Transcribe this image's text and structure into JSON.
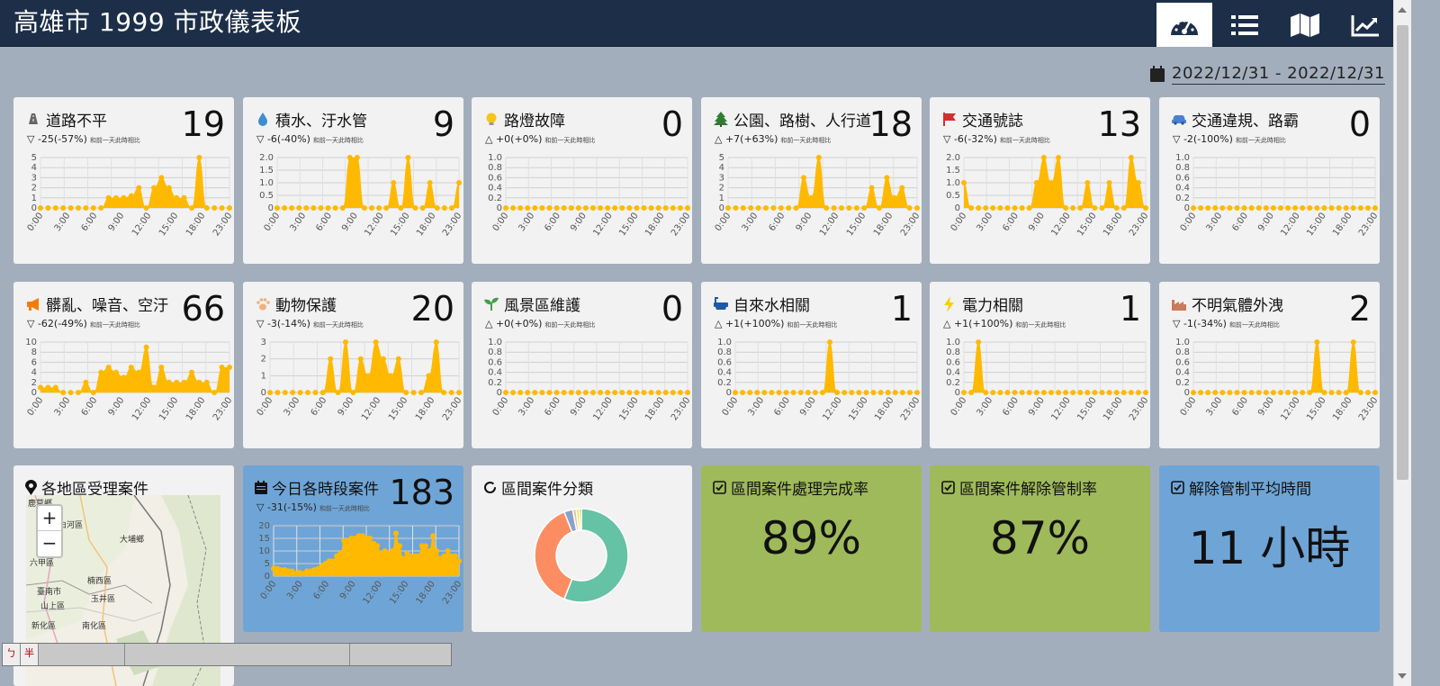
{
  "app": {
    "title": "高雄市 1999 市政儀表板"
  },
  "nav": [
    {
      "name": "dashboard-tab",
      "icon": "speedometer-icon",
      "active": true
    },
    {
      "name": "list-tab",
      "icon": "list-icon",
      "active": false
    },
    {
      "name": "map-tab",
      "icon": "map-icon",
      "active": false
    },
    {
      "name": "trend-tab",
      "icon": "chart-line-icon",
      "active": false
    }
  ],
  "date_range": "2022/12/31 - 2022/12/31",
  "compare_note": "和前一天此時相比",
  "categories": [
    {
      "title": "道路不平",
      "icon": "road-icon",
      "count": "19",
      "delta": "▽ -25(-57%)",
      "ymax": 5,
      "yticks": [
        "5",
        "4",
        "3",
        "2",
        "1",
        "0"
      ],
      "values": [
        0,
        0,
        0,
        0,
        0,
        0,
        0,
        0,
        0,
        1,
        1,
        1,
        1.2,
        2,
        0,
        2,
        3,
        2,
        1,
        1,
        0,
        5,
        0,
        0,
        0,
        0
      ]
    },
    {
      "title": "積水、汙水管",
      "icon": "water-drop-icon",
      "count": "9",
      "delta": "▽ -6(-40%)",
      "ymax": 2,
      "yticks": [
        "2.0",
        "1.5",
        "1.0",
        "0.5",
        "0"
      ],
      "values": [
        0,
        0,
        0,
        0,
        0,
        0,
        0,
        0,
        0,
        0,
        2,
        2,
        0,
        0,
        0,
        0,
        1,
        0,
        2,
        0,
        0,
        1,
        0,
        0,
        0,
        1
      ]
    },
    {
      "title": "路燈故障",
      "icon": "lightbulb-icon",
      "count": "0",
      "delta": "△ +0(+0%)",
      "ymax": 1,
      "yticks": [
        "1.0",
        "0.8",
        "0.6",
        "0.4",
        "0.2",
        "0"
      ],
      "values": [
        0,
        0,
        0,
        0,
        0,
        0,
        0,
        0,
        0,
        0,
        0,
        0,
        0,
        0,
        0,
        0,
        0,
        0,
        0,
        0,
        0,
        0,
        0,
        0,
        0,
        0
      ]
    },
    {
      "title": "公園、路樹、人行道",
      "icon": "tree-icon",
      "count": "18",
      "delta": "△ +7(+63%)",
      "ymax": 5,
      "yticks": [
        "5",
        "4",
        "3",
        "2",
        "1",
        "0"
      ],
      "values": [
        0,
        0,
        0,
        0,
        0,
        0,
        0,
        0,
        0,
        0,
        3,
        1,
        5,
        0,
        0,
        0,
        0,
        0,
        0,
        2,
        0,
        3,
        1,
        2,
        0,
        0
      ]
    },
    {
      "title": "交通號誌",
      "icon": "flag-icon",
      "count": "13",
      "delta": "▽ -6(-32%)",
      "ymax": 2,
      "yticks": [
        "2.0",
        "1.5",
        "1.0",
        "0.5",
        "0"
      ],
      "values": [
        1,
        0,
        0,
        0,
        0,
        0,
        0,
        0,
        0,
        0,
        1,
        2,
        1,
        2,
        0,
        0,
        0,
        1,
        0,
        0,
        1,
        0,
        0,
        2,
        1,
        0
      ]
    },
    {
      "title": "交通違規、路霸",
      "icon": "car-icon",
      "count": "0",
      "delta": "▽ -2(-100%)",
      "ymax": 1,
      "yticks": [
        "1.0",
        "0.8",
        "0.6",
        "0.4",
        "0.2",
        "0"
      ],
      "values": [
        0,
        0,
        0,
        0,
        0,
        0,
        0,
        0,
        0,
        0,
        0,
        0,
        0,
        0,
        0,
        0,
        0,
        0,
        0,
        0,
        0,
        0,
        0,
        0,
        0,
        0
      ]
    },
    {
      "title": "髒亂、噪音、空汙",
      "icon": "megaphone-icon",
      "count": "66",
      "delta": "▽ -62(-49%)",
      "ymax": 10,
      "yticks": [
        "10",
        "8",
        "6",
        "4",
        "2",
        "0"
      ],
      "values": [
        1,
        1,
        1,
        0,
        0,
        0,
        2,
        0,
        4,
        5,
        4,
        3,
        5,
        4,
        9,
        1,
        5,
        2,
        2,
        2,
        4,
        2,
        2,
        0,
        5,
        5
      ]
    },
    {
      "title": "動物保護",
      "icon": "paw-icon",
      "count": "20",
      "delta": "▽ -3(-14%)",
      "ymax": 3,
      "yticks": [
        "3",
        "2",
        "1",
        "0"
      ],
      "values": [
        0,
        0,
        0,
        0,
        0,
        0,
        0,
        0,
        2,
        0,
        3,
        0,
        2,
        1,
        3,
        2,
        1,
        2,
        0,
        0,
        0,
        1,
        3,
        0,
        0,
        0
      ]
    },
    {
      "title": "風景區維護",
      "icon": "sprout-icon",
      "count": "0",
      "delta": "△ +0(+0%)",
      "ymax": 1,
      "yticks": [
        "1.0",
        "0.8",
        "0.6",
        "0.4",
        "0.2",
        "0"
      ],
      "values": [
        0,
        0,
        0,
        0,
        0,
        0,
        0,
        0,
        0,
        0,
        0,
        0,
        0,
        0,
        0,
        0,
        0,
        0,
        0,
        0,
        0,
        0,
        0,
        0,
        0,
        0
      ]
    },
    {
      "title": "自來水相關",
      "icon": "bathtub-icon",
      "count": "1",
      "delta": "△ +1(+100%)",
      "ymax": 1,
      "yticks": [
        "1.0",
        "0.8",
        "0.6",
        "0.4",
        "0.2",
        "0"
      ],
      "values": [
        0,
        0,
        0,
        0,
        0,
        0,
        0,
        0,
        0,
        0,
        0,
        0,
        0,
        1,
        0,
        0,
        0,
        0,
        0,
        0,
        0,
        0,
        0,
        0,
        0,
        0
      ]
    },
    {
      "title": "電力相關",
      "icon": "bolt-icon",
      "count": "1",
      "delta": "△ +1(+100%)",
      "ymax": 1,
      "yticks": [
        "1.0",
        "0.8",
        "0.6",
        "0.4",
        "0.2",
        "0"
      ],
      "values": [
        0,
        0,
        1,
        0,
        0,
        0,
        0,
        0,
        0,
        0,
        0,
        0,
        0,
        0,
        0,
        0,
        0,
        0,
        0,
        0,
        0,
        0,
        0,
        0,
        0,
        0
      ]
    },
    {
      "title": "不明氣體外洩",
      "icon": "factory-icon",
      "count": "2",
      "delta": "▽ -1(-34%)",
      "ymax": 1,
      "yticks": [
        "1.0",
        "0.8",
        "0.6",
        "0.4",
        "0.2",
        "0"
      ],
      "values": [
        0,
        0,
        0,
        0,
        0,
        0,
        0,
        0,
        0,
        0,
        0,
        0,
        0,
        0,
        0,
        0,
        0,
        1,
        0,
        0,
        0,
        0,
        1,
        0,
        0,
        0
      ]
    }
  ],
  "xticks": [
    "0:00",
    "3:00",
    "6:00",
    "9:00",
    "12:00",
    "15:00",
    "18:00",
    "23:00"
  ],
  "map": {
    "title": "各地區受理案件",
    "zoom_in": "+",
    "zoom_out": "−",
    "labels": [
      "鹿草鄉",
      "白河區",
      "大埔鄉",
      "六甲區",
      "楠西區",
      "臺南市",
      "玉井區",
      "山上區",
      "新化區",
      "南化區"
    ]
  },
  "hourly": {
    "title": "今日各時段案件",
    "count": "183",
    "delta": "▽ -31(-15%)",
    "ymax": 20,
    "yticks": [
      "20",
      "15",
      "10",
      "5",
      "0"
    ],
    "values": [
      3,
      3,
      2.5,
      2.5,
      2,
      2,
      1,
      1.5,
      1,
      2,
      2,
      2.5,
      3,
      4,
      5,
      6,
      6,
      8,
      9,
      14,
      14,
      15,
      15,
      16,
      16,
      15,
      15,
      13,
      12,
      9,
      10,
      9,
      10,
      17,
      12,
      7,
      9,
      8,
      8,
      8,
      12,
      12,
      10,
      16,
      10,
      7,
      8,
      10,
      8,
      8,
      6
    ]
  },
  "donut": {
    "title": "區間案件分類",
    "slices": [
      {
        "value": 56,
        "color": "#66c2a5"
      },
      {
        "value": 38,
        "color": "#fc8d62"
      },
      {
        "value": 3,
        "color": "#8da0cb"
      },
      {
        "value": 1.2,
        "color": "#e5c494"
      },
      {
        "value": 1,
        "color": "#ffd92f"
      },
      {
        "value": 0.8,
        "color": "#a6d854"
      }
    ]
  },
  "kpis": [
    {
      "title": "區間案件處理完成率",
      "value": "89%",
      "theme": "green"
    },
    {
      "title": "區間案件解除管制率",
      "value": "87%",
      "theme": "green"
    },
    {
      "title": "解除管制平均時間",
      "value": "11 小時",
      "theme": "blue"
    }
  ],
  "ime": {
    "chars": [
      "ㄅ",
      "半"
    ]
  }
}
